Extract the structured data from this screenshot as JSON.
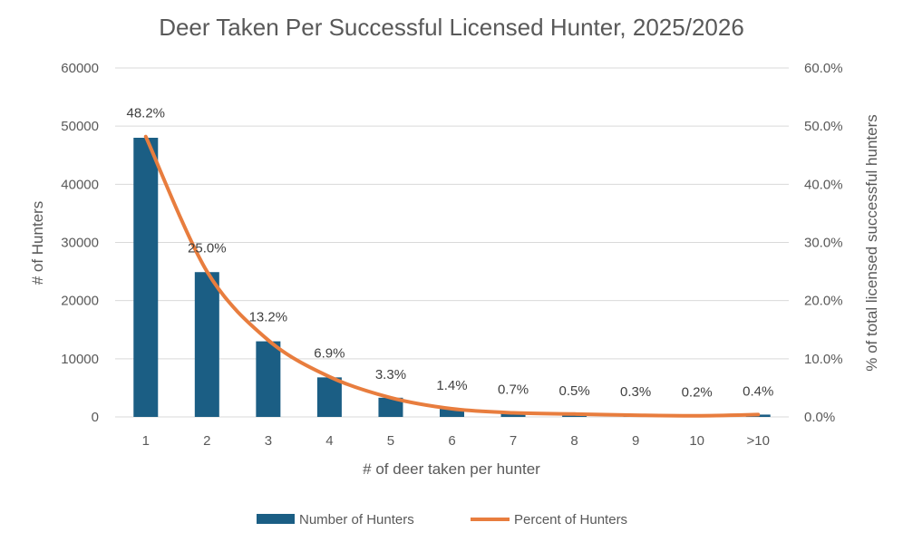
{
  "chart_data": {
    "type": "bar",
    "title": "Deer Taken Per Successful Licensed Hunter, 2025/2026",
    "xlabel": "# of deer taken per hunter",
    "ylabel": "# of Hunters",
    "y2label": "% of total licensed successful hunters",
    "categories": [
      "1",
      "2",
      "3",
      "4",
      "5",
      "6",
      "7",
      "8",
      "9",
      "10",
      ">10"
    ],
    "ylim": [
      0,
      60000
    ],
    "y_ticks": [
      "0",
      "10000",
      "20000",
      "30000",
      "40000",
      "50000",
      "60000"
    ],
    "y2lim": [
      0,
      60
    ],
    "y2_ticks": [
      "0.0%",
      "10.0%",
      "20.0%",
      "30.0%",
      "40.0%",
      "50.0%",
      "60.0%"
    ],
    "grid": true,
    "legend_position": "bottom",
    "series": [
      {
        "name": "Number of Hunters",
        "type": "bar",
        "axis": "left",
        "color": "#1b5e84",
        "values": [
          48000,
          24900,
          13000,
          6800,
          3300,
          1400,
          700,
          500,
          300,
          200,
          400
        ]
      },
      {
        "name": "Percent of Hunters",
        "type": "line",
        "axis": "right",
        "color": "#e87d3e",
        "values": [
          48.2,
          25.0,
          13.2,
          6.9,
          3.3,
          1.4,
          0.7,
          0.5,
          0.3,
          0.2,
          0.4
        ],
        "labels": [
          "48.2%",
          "25.0%",
          "13.2%",
          "6.9%",
          "3.3%",
          "1.4%",
          "0.7%",
          "0.5%",
          "0.3%",
          "0.2%",
          "0.4%"
        ]
      }
    ]
  }
}
